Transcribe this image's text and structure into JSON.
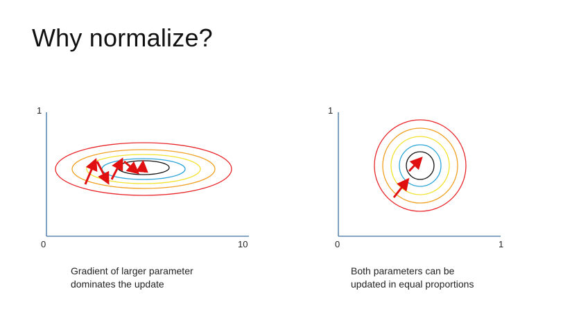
{
  "slide": {
    "title": "Why normalize?"
  },
  "colors": {
    "axis": "#3a6fa0",
    "contour_outer": "#e8252a",
    "contour_orange": "#f0a020",
    "contour_yellow": "#f2e22c",
    "contour_cyan": "#2aa4d8",
    "contour_inner": "#111111",
    "arrow": "#e01010"
  },
  "left_plot": {
    "y_max_label": "1",
    "x_min_label": "0",
    "x_max_label": "10",
    "caption_lines": [
      "Gradient of larger parameter",
      "dominates the update"
    ]
  },
  "right_plot": {
    "y_max_label": "1",
    "x_min_label": "0",
    "x_max_label": "1",
    "caption_lines": [
      "Both parameters can be",
      "updated in equal proportions"
    ]
  }
}
